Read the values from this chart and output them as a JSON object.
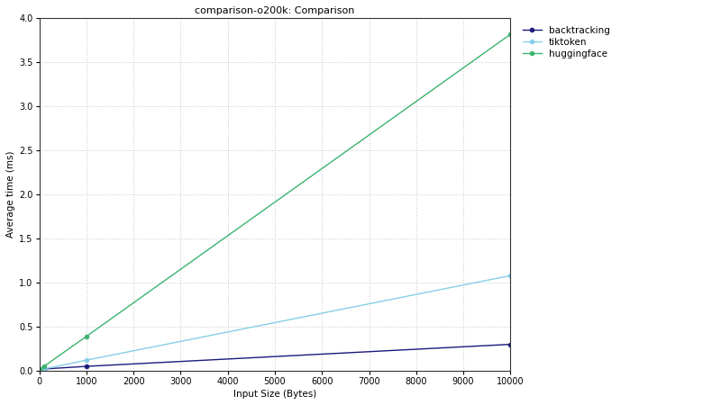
{
  "title": "comparison-o200k: Comparison",
  "xlabel": "Input Size (Bytes)",
  "ylabel": "Average time (ms)",
  "xlim": [
    0,
    10000
  ],
  "ylim": [
    0,
    4
  ],
  "series": [
    {
      "label": "backtracking",
      "color": "#1a1a7e",
      "x": [
        0,
        100,
        1000,
        10000
      ],
      "y": [
        0.01,
        0.02,
        0.05,
        0.3
      ]
    },
    {
      "label": "tiktoken",
      "color": "#87CEEB",
      "x": [
        0,
        100,
        1000,
        10000
      ],
      "y": [
        0.01,
        0.02,
        0.12,
        1.08
      ]
    },
    {
      "label": "huggingface",
      "color": "#3CB371",
      "x": [
        0,
        100,
        1000,
        10000
      ],
      "y": [
        0.02,
        0.05,
        0.39,
        3.82
      ]
    }
  ],
  "grid_color": "#bbbbbb",
  "bg_color": "#ffffff",
  "title_fontsize": 8,
  "axis_label_fontsize": 7.5,
  "tick_fontsize": 7,
  "legend_fontsize": 7.5,
  "linewidth": 1.0,
  "markersize": 3.5
}
